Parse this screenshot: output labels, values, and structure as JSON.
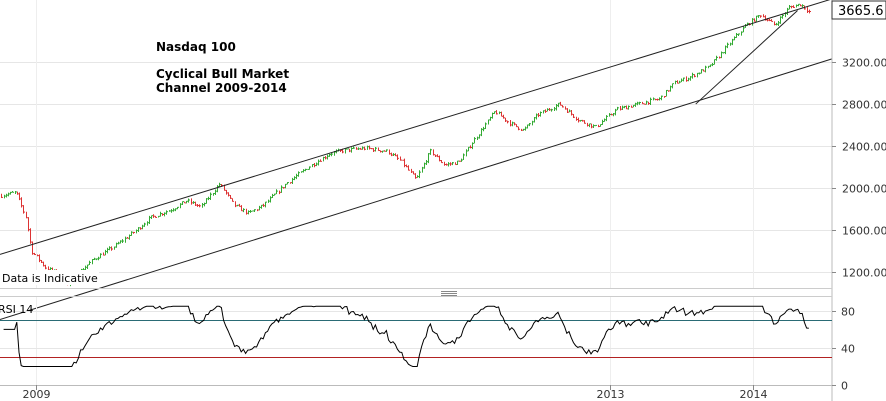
{
  "chart_data": [
    {
      "type": "bar",
      "subtype": "ohlc",
      "title": "Nasdaq 100",
      "annotation": [
        "Cyclical Bull Market",
        "Channel 2009-2014"
      ],
      "note": "Data is Indicative",
      "last_price_label": "3665.6",
      "yticks": [
        1200,
        1600,
        2000,
        2400,
        2800,
        3200
      ],
      "ytick_labels": [
        "1200.00",
        "1600.00",
        "2000.00",
        "2400.00",
        "2800.00",
        "3200.00"
      ],
      "ylim": [
        1050,
        3790
      ],
      "xlim": [
        2008.75,
        2014.55
      ],
      "x_ticks": [
        2009,
        2013,
        2014
      ],
      "x_tick_labels": [
        "2009",
        "2013",
        "2014"
      ],
      "grid": true,
      "up_color": "#33aa33",
      "down_color": "#dd3333",
      "anchors": [
        [
          2008.76,
          1930
        ],
        [
          2008.86,
          1960
        ],
        [
          2008.93,
          1720
        ],
        [
          2008.97,
          1400
        ],
        [
          2009.07,
          1240
        ],
        [
          2009.15,
          1190
        ],
        [
          2009.22,
          1080
        ],
        [
          2009.3,
          1200
        ],
        [
          2009.4,
          1320
        ],
        [
          2009.55,
          1450
        ],
        [
          2009.7,
          1600
        ],
        [
          2009.8,
          1720
        ],
        [
          2009.95,
          1800
        ],
        [
          2010.05,
          1880
        ],
        [
          2010.15,
          1820
        ],
        [
          2010.28,
          2040
        ],
        [
          2010.38,
          1840
        ],
        [
          2010.48,
          1760
        ],
        [
          2010.58,
          1830
        ],
        [
          2010.75,
          2050
        ],
        [
          2010.9,
          2200
        ],
        [
          2011.05,
          2330
        ],
        [
          2011.15,
          2360
        ],
        [
          2011.3,
          2380
        ],
        [
          2011.45,
          2350
        ],
        [
          2011.55,
          2250
        ],
        [
          2011.65,
          2080
        ],
        [
          2011.75,
          2350
        ],
        [
          2011.85,
          2220
        ],
        [
          2011.95,
          2250
        ],
        [
          2012.05,
          2450
        ],
        [
          2012.2,
          2730
        ],
        [
          2012.3,
          2620
        ],
        [
          2012.4,
          2550
        ],
        [
          2012.5,
          2700
        ],
        [
          2012.65,
          2800
        ],
        [
          2012.78,
          2650
        ],
        [
          2012.9,
          2580
        ],
        [
          2013.05,
          2750
        ],
        [
          2013.2,
          2800
        ],
        [
          2013.35,
          2850
        ],
        [
          2013.45,
          3000
        ],
        [
          2013.55,
          3050
        ],
        [
          2013.7,
          3160
        ],
        [
          2013.85,
          3400
        ],
        [
          2013.95,
          3550
        ],
        [
          2014.05,
          3650
        ],
        [
          2014.15,
          3550
        ],
        [
          2014.25,
          3720
        ],
        [
          2014.33,
          3750
        ],
        [
          2014.4,
          3665
        ]
      ],
      "channel_lines": [
        {
          "name": "upper",
          "x": [
            2008.75,
            2014.55
          ],
          "y": [
            1370,
            3800
          ]
        },
        {
          "name": "lower",
          "x": [
            2008.75,
            2014.55
          ],
          "y": [
            750,
            3230
          ]
        },
        {
          "name": "trendline",
          "x": [
            2013.6,
            2014.31
          ],
          "y": [
            2800,
            3690
          ]
        }
      ]
    },
    {
      "type": "line",
      "title": "RSI 14",
      "ylim": [
        0,
        95
      ],
      "yticks": [
        0,
        40,
        80
      ],
      "ytick_labels": [
        "0",
        "40",
        "80"
      ],
      "levels": [
        {
          "value": 70,
          "color": "#2a6b75"
        },
        {
          "value": 30,
          "color": "#b22222"
        }
      ],
      "line_color": "#000000",
      "range_observed": [
        20,
        85
      ]
    }
  ]
}
